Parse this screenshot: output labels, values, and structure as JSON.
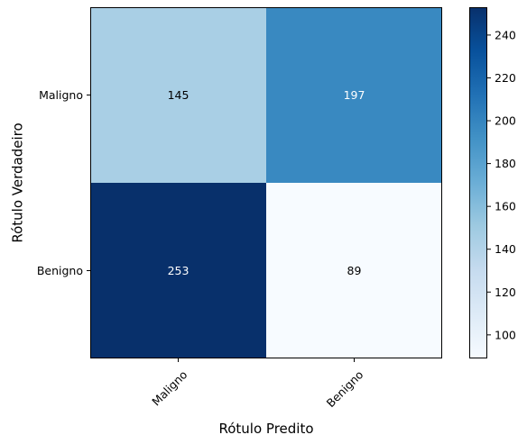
{
  "chart_data": {
    "type": "heatmap",
    "title": "",
    "xlabel": "Rótulo Predito",
    "ylabel": "Rótulo Verdadeiro",
    "x_categories": [
      "Maligno",
      "Benigno"
    ],
    "y_categories": [
      "Maligno",
      "Benigno"
    ],
    "values": [
      [
        145,
        197
      ],
      [
        253,
        89
      ]
    ],
    "value_labels": [
      [
        "145",
        "197"
      ],
      [
        "253",
        "89"
      ]
    ],
    "colorbar": {
      "colormap": "Blues",
      "range": [
        89,
        253
      ],
      "ticks": [
        100,
        120,
        140,
        160,
        180,
        200,
        220,
        240
      ],
      "tick_labels": [
        "100",
        "120",
        "140",
        "160",
        "180",
        "200",
        "220",
        "240"
      ]
    },
    "x_tick_rotation_deg": 45
  }
}
